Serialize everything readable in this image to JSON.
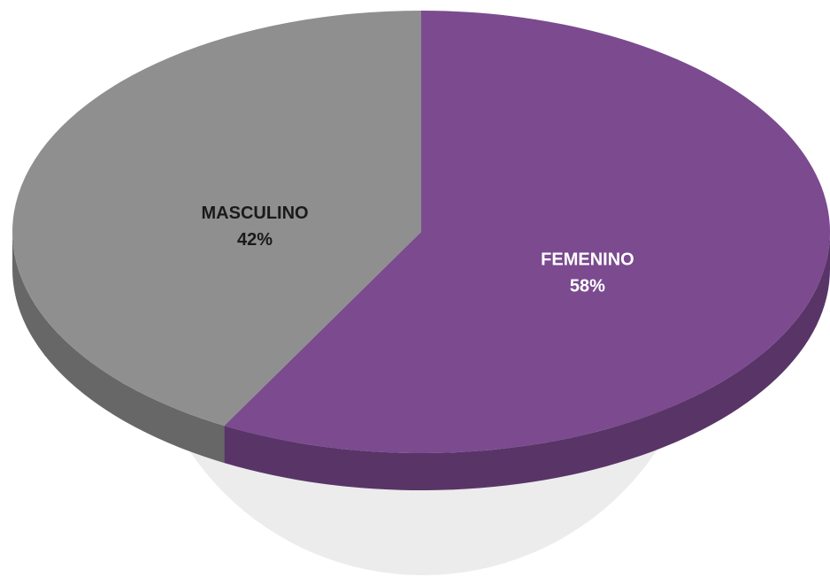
{
  "chart_data": {
    "type": "pie",
    "categories": [
      "FEMENINO",
      "MASCULINO"
    ],
    "values": [
      58,
      42
    ],
    "value_labels": [
      "58%",
      "42%"
    ],
    "colors": [
      "#7b4a8f",
      "#8f8f8f"
    ],
    "label_colors": [
      "#ffffff",
      "#1a1a1a"
    ]
  }
}
